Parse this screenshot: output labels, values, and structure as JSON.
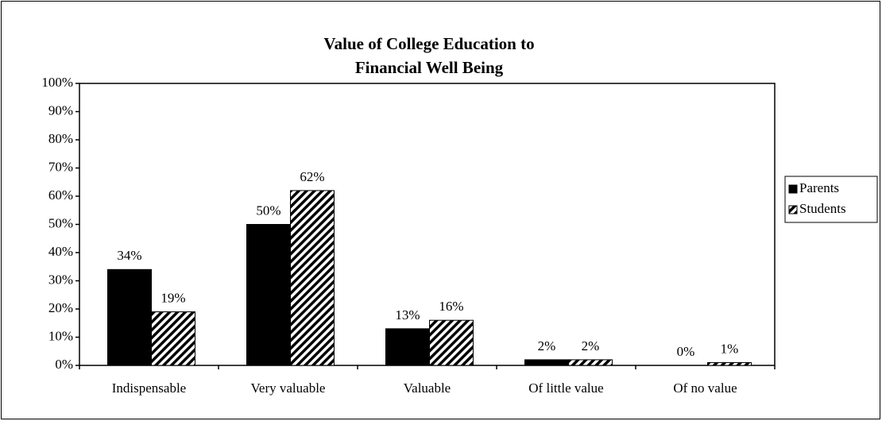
{
  "chart_data": {
    "type": "bar",
    "title": [
      "Value of College Education to",
      "Financial Well Being"
    ],
    "categories": [
      "Indispensable",
      "Very valuable",
      "Valuable",
      "Of little value",
      "Of no value"
    ],
    "series": [
      {
        "name": "Parents",
        "color": "#000000",
        "values": [
          34,
          50,
          13,
          2,
          0
        ],
        "value_labels": [
          "34%",
          "50%",
          "13%",
          "2%",
          "0%"
        ]
      },
      {
        "name": "Students",
        "color": "hatched",
        "values": [
          19,
          62,
          16,
          2,
          1
        ],
        "value_labels": [
          "19%",
          "62%",
          "16%",
          "2%",
          "1%"
        ]
      }
    ],
    "ylim": [
      0,
      100
    ],
    "yticks": [
      {
        "value": 0,
        "label": "0%"
      },
      {
        "value": 10,
        "label": "10%"
      },
      {
        "value": 20,
        "label": "20%"
      },
      {
        "value": 30,
        "label": "30%"
      },
      {
        "value": 40,
        "label": "40%"
      },
      {
        "value": 50,
        "label": "50%"
      },
      {
        "value": 60,
        "label": "60%"
      },
      {
        "value": 70,
        "label": "70%"
      },
      {
        "value": 80,
        "label": "80%"
      },
      {
        "value": 90,
        "label": "90%"
      },
      {
        "value": 100,
        "label": "100%"
      }
    ],
    "legend": "right"
  }
}
